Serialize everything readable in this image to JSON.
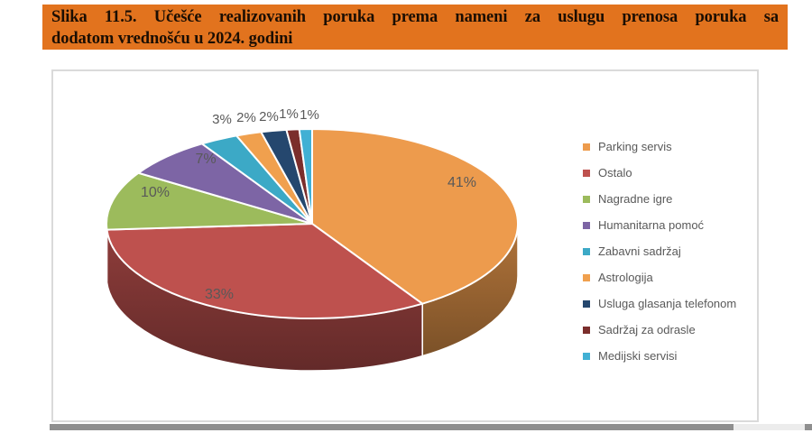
{
  "title": {
    "lines": [
      "Slika 11.5. Učešće realizovanih poruka prema nameni za uslugu prenosa poruka sa",
      "dodatom vrednošću u 2024. godini"
    ],
    "bg_color": "#e2731e",
    "text_color": "#1b0e03"
  },
  "chart_data": {
    "type": "pie",
    "style": "3d",
    "categories": [
      "Parking servis",
      "Ostalo",
      "Nagradne igre",
      "Humanitarna pomoć",
      "Zabavni sadržaj",
      "Astrologija",
      "Usluga glasanja telefonom",
      "Sadržaj za odrasle",
      "Medijski servisi"
    ],
    "values": [
      41,
      33,
      10,
      7,
      3,
      2,
      2,
      1,
      1
    ],
    "data_labels": [
      "41%",
      "33%",
      "10%",
      "7%",
      "3%",
      "2%",
      "2%",
      "1%",
      "1%"
    ],
    "colors": [
      "#ED9B4D",
      "#BE514E",
      "#9CBB5C",
      "#7D65A5",
      "#3CA9C6",
      "#F0A04E",
      "#25476E",
      "#7B2E2C",
      "#41B0D4"
    ],
    "unit": "%",
    "start_angle_deg": 0,
    "direction": "clockwise",
    "legend_position": "right",
    "label_color": "#595959",
    "legend_text_color": "#595959"
  }
}
